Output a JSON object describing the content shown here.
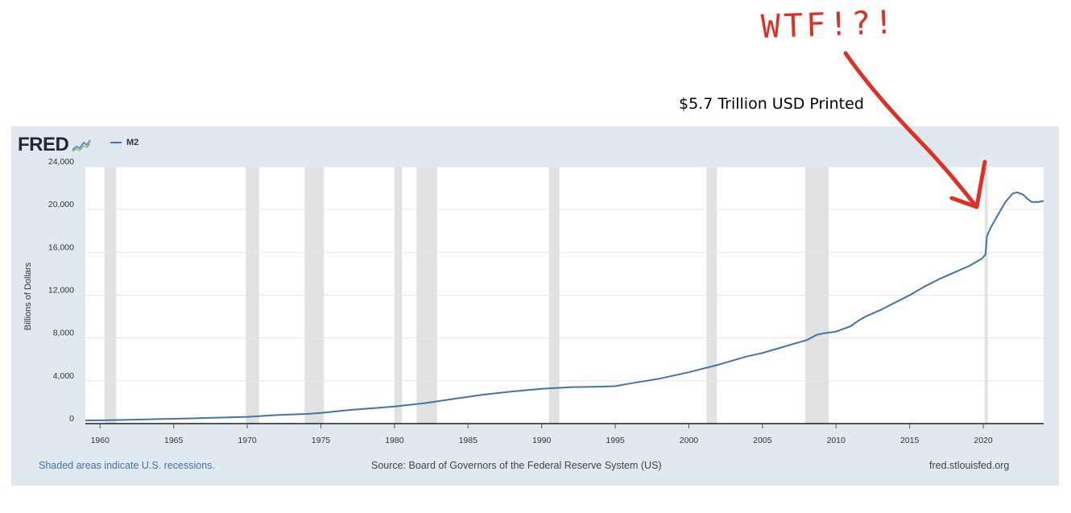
{
  "annotation": {
    "text": "$5.7 Trillion USD Printed",
    "handwritten": "WTF!?!"
  },
  "brand": {
    "logo": "FRED"
  },
  "legend": {
    "series_label": "M2",
    "color": "#4572a7"
  },
  "footer": {
    "recessions_note": "Shaded areas indicate U.S. recessions.",
    "source": "Source: Board of Governors of the Federal Reserve System (US)",
    "site": "fred.stlouisfed.org"
  },
  "colors": {
    "background": "#e1e9f0",
    "plot_area": "#ffffff",
    "recession_band": "#e1e1e1",
    "line": "#4572a7",
    "annotation": "#e03024"
  },
  "chart_data": {
    "type": "line",
    "title": "",
    "xlabel": "",
    "ylabel": "Billions of Dollars",
    "xlim": [
      1959,
      2024.1
    ],
    "ylim": [
      0,
      24000
    ],
    "x_ticks": [
      1960,
      1965,
      1970,
      1975,
      1980,
      1985,
      1990,
      1995,
      2000,
      2005,
      2010,
      2015,
      2020
    ],
    "y_ticks": [
      0,
      4000,
      8000,
      12000,
      16000,
      20000,
      24000
    ],
    "y_tick_labels": [
      "0",
      "4,000",
      "8,000",
      "12,000",
      "16,000",
      "20,000",
      "24,000"
    ],
    "grid": "horizontal",
    "recessions": [
      [
        1960.3,
        1961.1
      ],
      [
        1969.9,
        1970.8
      ],
      [
        1973.9,
        1975.2
      ],
      [
        1980.0,
        1980.5
      ],
      [
        1981.5,
        1982.9
      ],
      [
        1990.5,
        1991.2
      ],
      [
        2001.2,
        2001.9
      ],
      [
        2007.9,
        2009.5
      ],
      [
        2020.1,
        2020.3
      ]
    ],
    "series": [
      {
        "name": "M2",
        "x": [
          1959,
          1960,
          1962,
          1964,
          1966,
          1968,
          1970,
          1972,
          1974,
          1975,
          1977,
          1979,
          1980,
          1982,
          1984,
          1986,
          1988,
          1990,
          1992,
          1994,
          1995,
          1996,
          1998,
          2000,
          2002,
          2003,
          2004,
          2005,
          2006,
          2007,
          2008,
          2008.7,
          2009.2,
          2010,
          2011,
          2011.5,
          2012,
          2013,
          2014,
          2015,
          2016,
          2017,
          2018,
          2019,
          2019.9,
          2020.15,
          2020.25,
          2020.5,
          2021,
          2021.5,
          2022,
          2022.3,
          2022.7,
          2023,
          2023.3,
          2023.7,
          2024.1
        ],
        "y": [
          290,
          310,
          360,
          420,
          480,
          560,
          630,
          800,
          900,
          1000,
          1280,
          1480,
          1600,
          1900,
          2300,
          2700,
          3000,
          3250,
          3400,
          3450,
          3500,
          3750,
          4200,
          4800,
          5500,
          5900,
          6300,
          6600,
          7000,
          7400,
          7800,
          8300,
          8450,
          8600,
          9100,
          9600,
          10000,
          10600,
          11300,
          12000,
          12800,
          13500,
          14100,
          14700,
          15400,
          15800,
          17500,
          18300,
          19500,
          20700,
          21500,
          21600,
          21400,
          21000,
          20700,
          20700,
          20800
        ]
      }
    ]
  }
}
